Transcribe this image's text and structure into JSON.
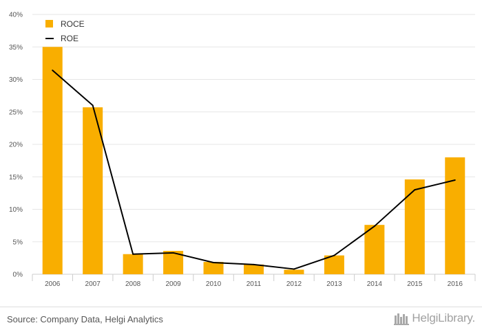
{
  "colors": {
    "bar": "#F9AE00",
    "line": "#000000",
    "grid": "#e6e6e6",
    "axis": "#cccccc"
  },
  "chart_data": {
    "type": "bar",
    "categories": [
      "2006",
      "2007",
      "2008",
      "2009",
      "2010",
      "2011",
      "2012",
      "2013",
      "2014",
      "2015",
      "2016"
    ],
    "series": [
      {
        "name": "ROCE",
        "type": "bar",
        "values": [
          35.0,
          25.7,
          3.1,
          3.6,
          1.9,
          1.5,
          0.7,
          2.9,
          7.6,
          14.6,
          18.0
        ]
      },
      {
        "name": "ROE",
        "type": "line",
        "values": [
          31.4,
          26.0,
          3.1,
          3.3,
          1.8,
          1.5,
          0.8,
          2.9,
          7.4,
          13.0,
          14.5
        ]
      }
    ],
    "y_ticks": [
      "0%",
      "5%",
      "10%",
      "15%",
      "20%",
      "25%",
      "30%",
      "35%",
      "40%"
    ],
    "ylim": [
      0,
      40
    ],
    "grid": true,
    "legend_position": "top-left",
    "xlabel": "",
    "ylabel": ""
  },
  "footer": {
    "source": "Source: Company Data, Helgi Analytics",
    "logo_text": "HelgiLibrary."
  }
}
